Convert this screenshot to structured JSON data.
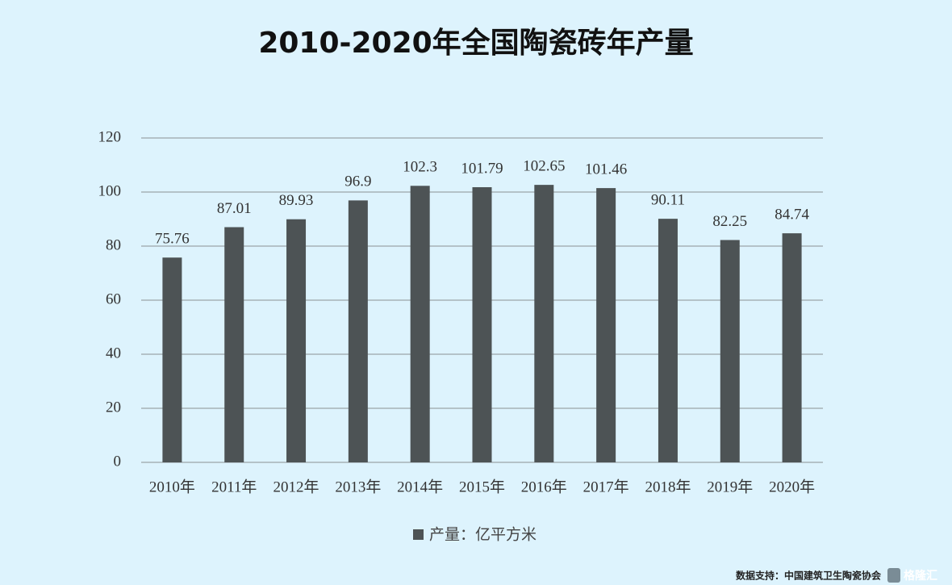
{
  "chart_data": {
    "type": "bar",
    "title": "2010-2020年全国陶瓷砖年产量",
    "categories": [
      "2010年",
      "2011年",
      "2012年",
      "2013年",
      "2014年",
      "2015年",
      "2016年",
      "2017年",
      "2018年",
      "2019年",
      "2020年"
    ],
    "series": [
      {
        "name": "产量：亿平方米",
        "color": "#4d5355",
        "values": [
          75.76,
          87.01,
          89.93,
          96.9,
          102.3,
          101.79,
          102.65,
          101.46,
          90.11,
          82.25,
          84.74
        ]
      }
    ],
    "ylim": [
      0,
      120
    ],
    "yticks": [
      0,
      20,
      40,
      60,
      80,
      100,
      120
    ],
    "grid": true,
    "legend": "bottom",
    "source": "数据支持：中国建筑卫生陶瓷协会",
    "logo": "格隆汇"
  }
}
